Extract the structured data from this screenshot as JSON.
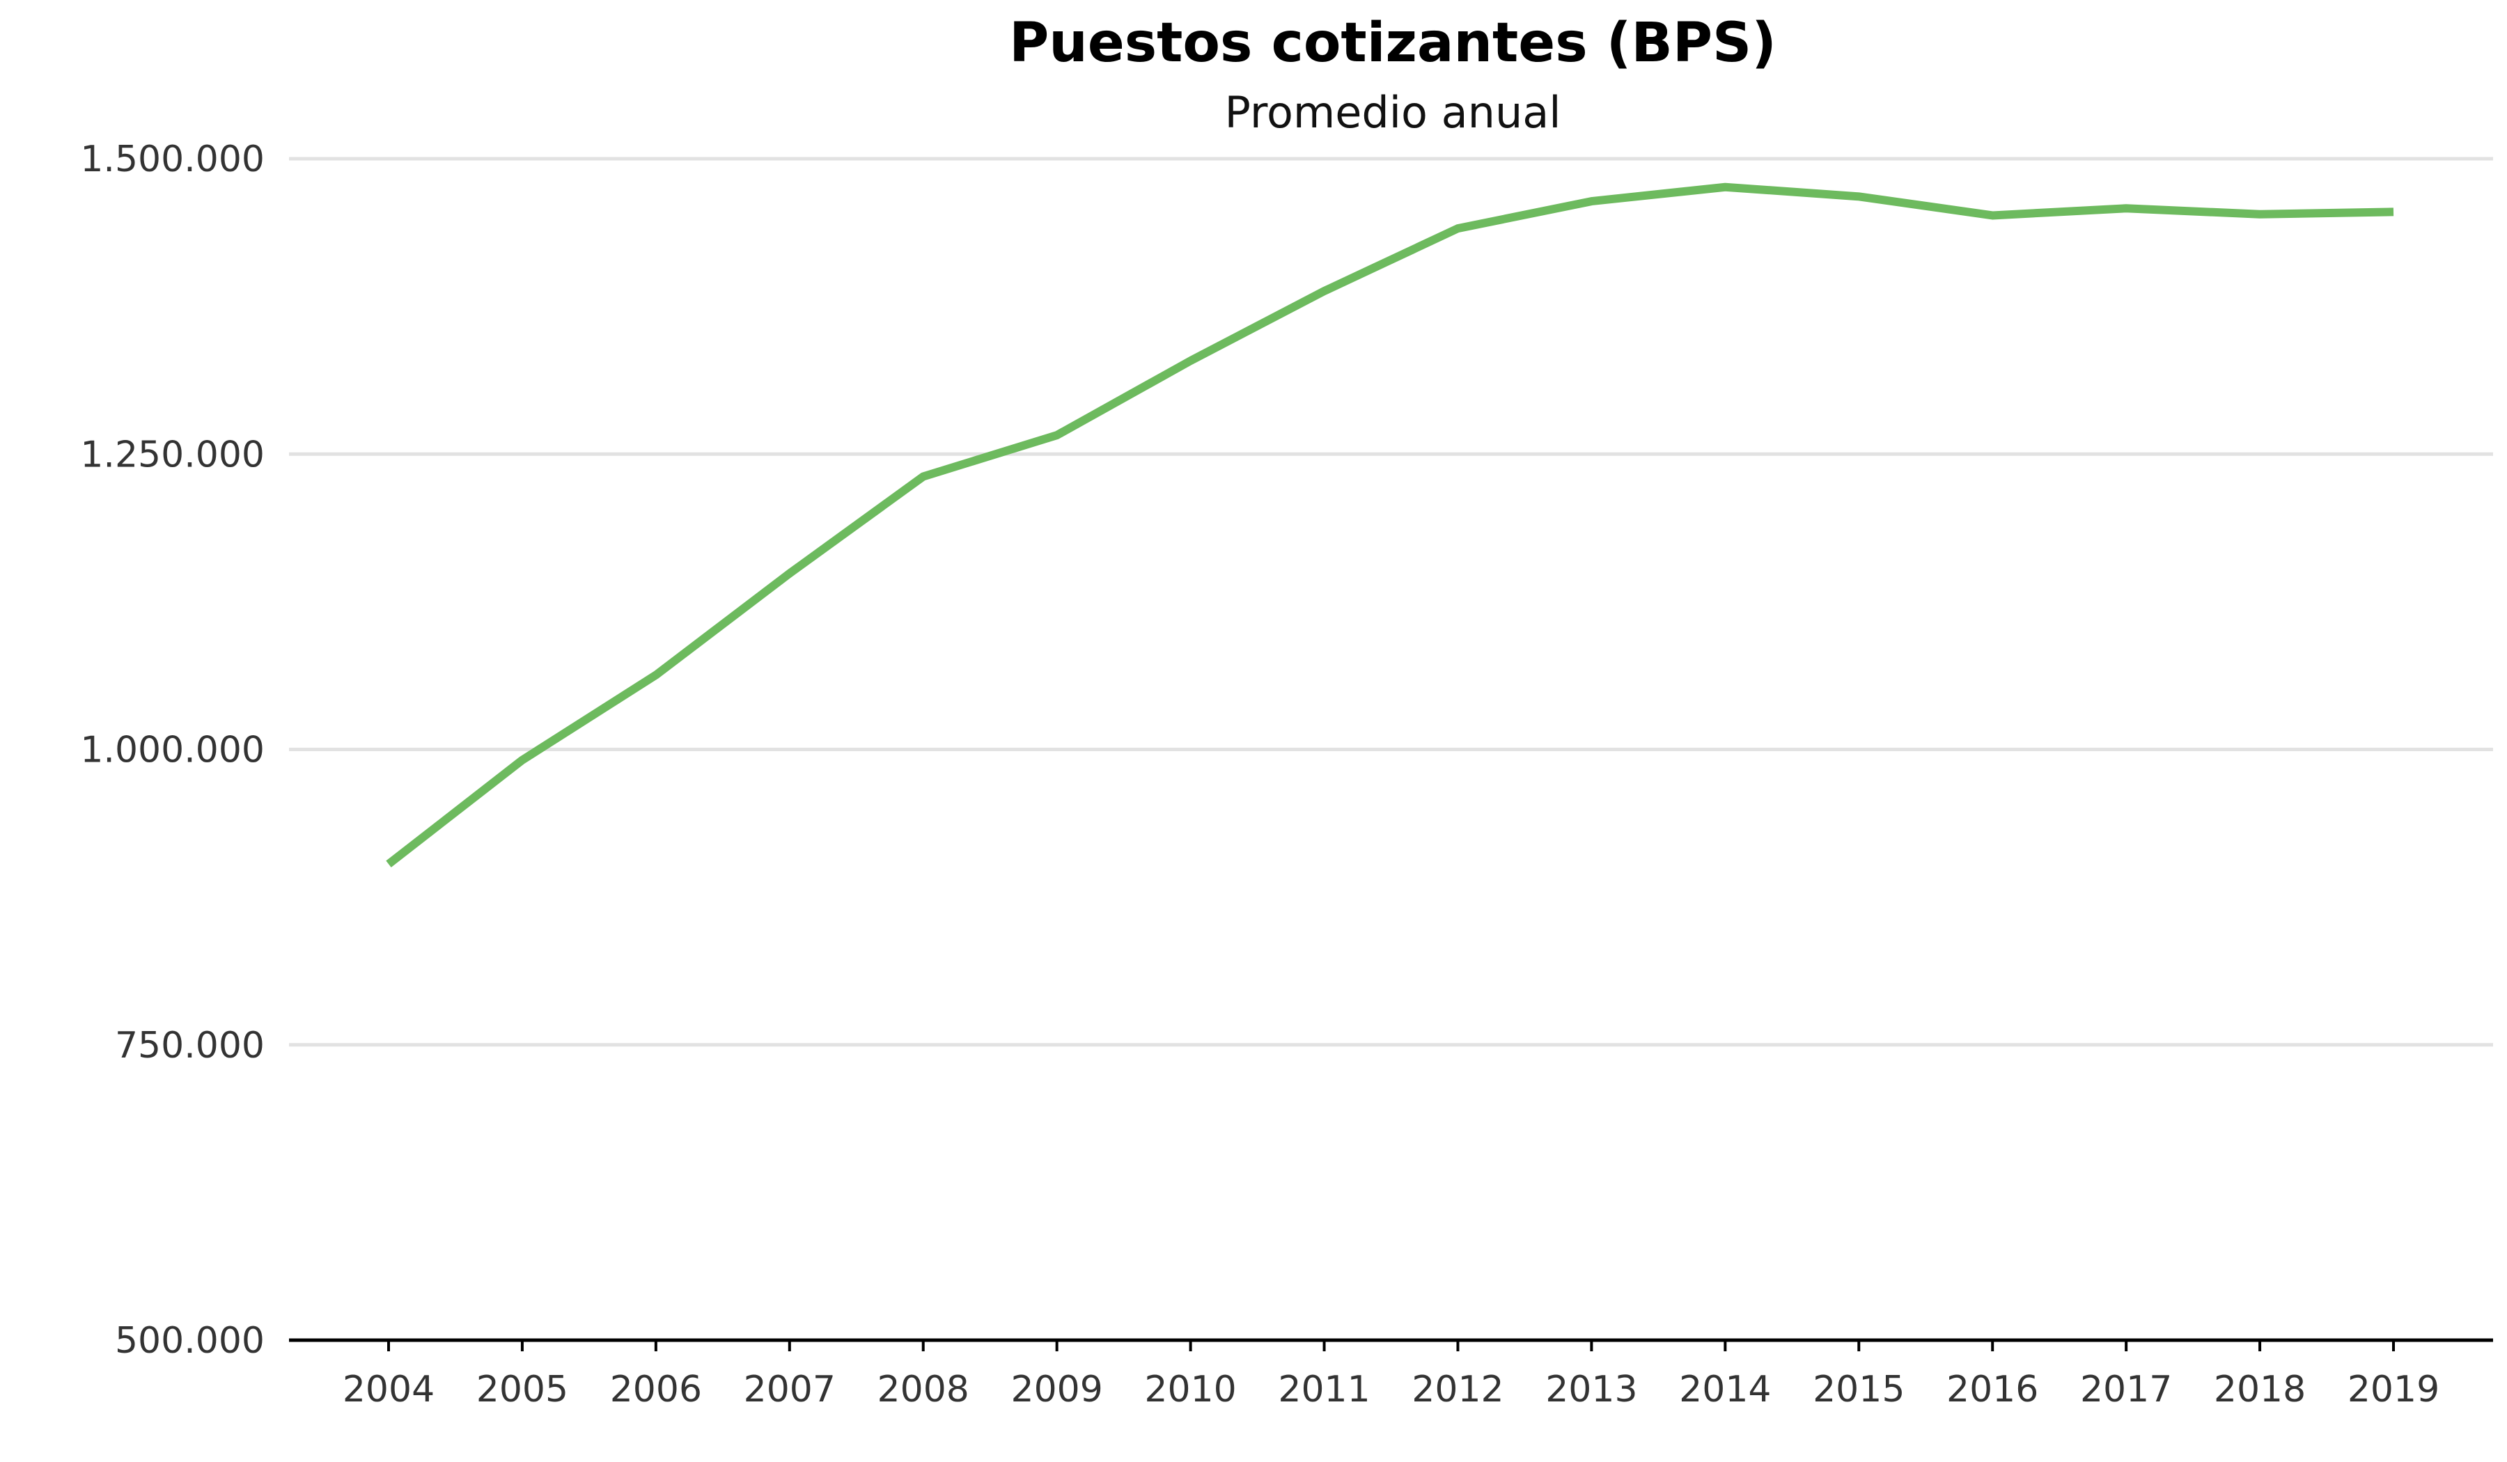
{
  "chart_data": {
    "type": "line",
    "title": "Puestos cotizantes (BPS)",
    "subtitle": "Promedio anual",
    "xlabel": "",
    "ylabel": "",
    "x": [
      "2004",
      "2005",
      "2006",
      "2007",
      "2008",
      "2009",
      "2010",
      "2011",
      "2012",
      "2013",
      "2014",
      "2015",
      "2016",
      "2017",
      "2018",
      "2019"
    ],
    "series": [
      {
        "name": "",
        "color": "#6dba5e",
        "values": [
          903000,
          991000,
          1063000,
          1149000,
          1231000,
          1266000,
          1329000,
          1388000,
          1441000,
          1464000,
          1476000,
          1468000,
          1452000,
          1458000,
          1453000,
          1455000
        ]
      }
    ],
    "ylim": [
      500000,
      1500000
    ],
    "yticks": [
      500000,
      750000,
      1000000,
      1250000,
      1500000
    ],
    "ytick_labels": [
      "500.000",
      "750.000",
      "1.000.000",
      "1.250.000",
      "1.500.000"
    ],
    "grid": true,
    "legend": "none"
  }
}
